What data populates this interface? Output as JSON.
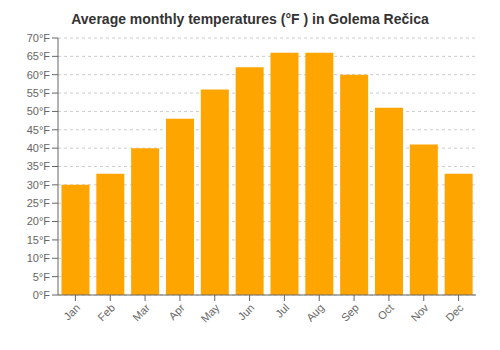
{
  "chart_data": {
    "type": "bar",
    "title": "Average monthly temperatures (°F ) in Golema Rečica",
    "categories": [
      "Jan",
      "Feb",
      "Mar",
      "Apr",
      "May",
      "Jun",
      "Jul",
      "Aug",
      "Sep",
      "Oct",
      "Nov",
      "Dec"
    ],
    "values": [
      30,
      33,
      40,
      48,
      56,
      62,
      66,
      66,
      60,
      51,
      41,
      33
    ],
    "color": "#FFA500",
    "ylim": [
      0,
      70
    ],
    "yticks": [
      {
        "value": 0,
        "label": "0°F"
      },
      {
        "value": 5,
        "label": "5°F"
      },
      {
        "value": 10,
        "label": "10°F"
      },
      {
        "value": 15,
        "label": "15°F"
      },
      {
        "value": 20,
        "label": "20°F"
      },
      {
        "value": 25,
        "label": "25°F"
      },
      {
        "value": 30,
        "label": "30°F"
      },
      {
        "value": 35,
        "label": "35°F"
      },
      {
        "value": 40,
        "label": "40°F"
      },
      {
        "value": 45,
        "label": "45°F"
      },
      {
        "value": 50,
        "label": "50°F"
      },
      {
        "value": 55,
        "label": "55°F"
      },
      {
        "value": 60,
        "label": "60°F"
      },
      {
        "value": 65,
        "label": "65°F"
      },
      {
        "value": 70,
        "label": "70°F"
      }
    ],
    "grid": true
  }
}
